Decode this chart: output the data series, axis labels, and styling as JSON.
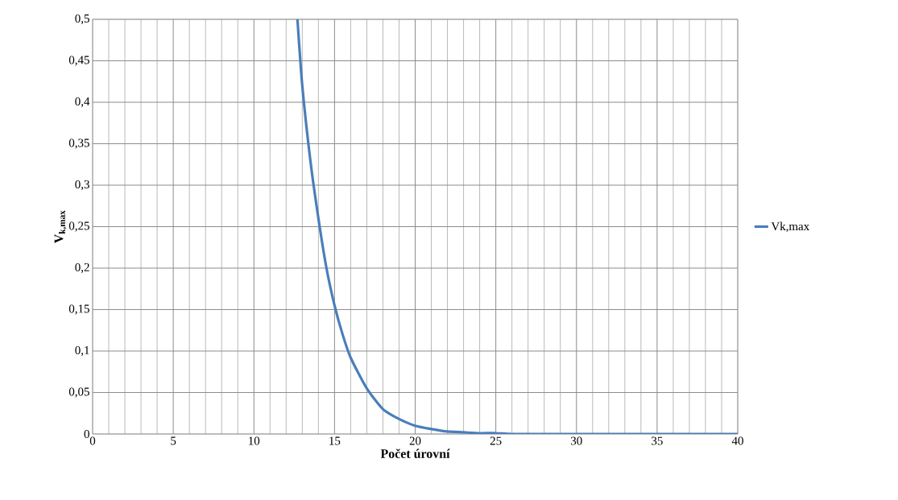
{
  "chart_data": {
    "type": "line",
    "xlabel": "Počet úrovní",
    "ylabel": "V$_{k,max}$",
    "x": [
      12.7,
      13,
      13.5,
      14,
      14.5,
      15,
      15.5,
      16,
      17,
      18,
      19,
      20,
      21,
      22,
      23,
      24,
      25,
      26,
      28,
      30,
      35,
      40
    ],
    "series": [
      {
        "name": "Vk,max",
        "color": "#4a7ebb",
        "values": [
          0.5,
          0.42,
          0.33,
          0.26,
          0.2,
          0.155,
          0.12,
          0.092,
          0.055,
          0.03,
          0.018,
          0.01,
          0.006,
          0.003,
          0.002,
          0.001,
          0.001,
          0,
          0,
          0,
          0,
          0
        ]
      }
    ],
    "xlim": [
      0,
      40
    ],
    "xticks": [
      0,
      5,
      10,
      15,
      20,
      25,
      30,
      35,
      40
    ],
    "ylim": [
      0,
      0.5
    ],
    "yticks": [
      0,
      {
        "value": 0.05,
        "label": "0,05"
      },
      {
        "value": 0.1,
        "label": "0,1"
      },
      {
        "value": 0.15,
        "label": "0,15"
      },
      {
        "value": 0.2,
        "label": "0,2"
      },
      {
        "value": 0.25,
        "label": "0,25"
      },
      {
        "value": 0.3,
        "label": "0,3"
      },
      {
        "value": 0.35,
        "label": "0,35"
      },
      {
        "value": 0.4,
        "label": "0,4"
      },
      {
        "value": 0.45,
        "label": "0,45"
      },
      {
        "value": 0.5,
        "label": "0,5"
      }
    ],
    "grid": true,
    "legend": "right",
    "marker": "none",
    "line_style": "solid"
  }
}
